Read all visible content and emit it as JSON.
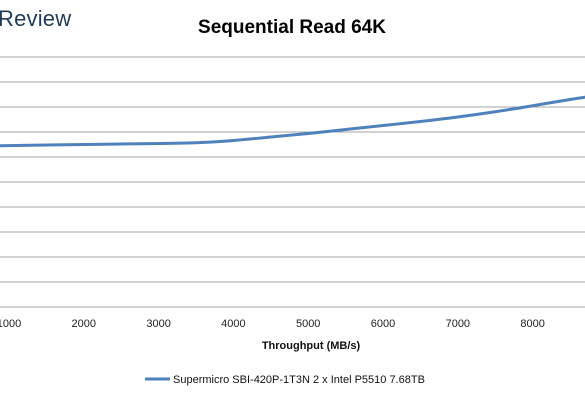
{
  "brand": {
    "logo_text": "Review"
  },
  "chart_data": {
    "type": "line",
    "title": "Sequential Read 64K",
    "xlabel": "Throughput (MB/s)",
    "ylabel": "",
    "xlim": [
      880,
      8700
    ],
    "xticks": [
      1000,
      2000,
      3000,
      4000,
      5000,
      6000,
      7000,
      8000
    ],
    "grid": true,
    "legend_position": "bottom",
    "series": [
      {
        "name": "Supermicro SBI-420P-1T3N 2 x Intel P5510 7.68TB",
        "color": "#4f81bd",
        "x": [
          880,
          1500,
          2500,
          3500,
          4000,
          4500,
          5000,
          5500,
          6000,
          6500,
          7000,
          7500,
          8000,
          8500,
          8700
        ],
        "y": [
          0.645,
          0.648,
          0.652,
          0.657,
          0.666,
          0.68,
          0.694,
          0.71,
          0.726,
          0.742,
          0.76,
          0.781,
          0.805,
          0.83,
          0.839
        ]
      }
    ]
  }
}
